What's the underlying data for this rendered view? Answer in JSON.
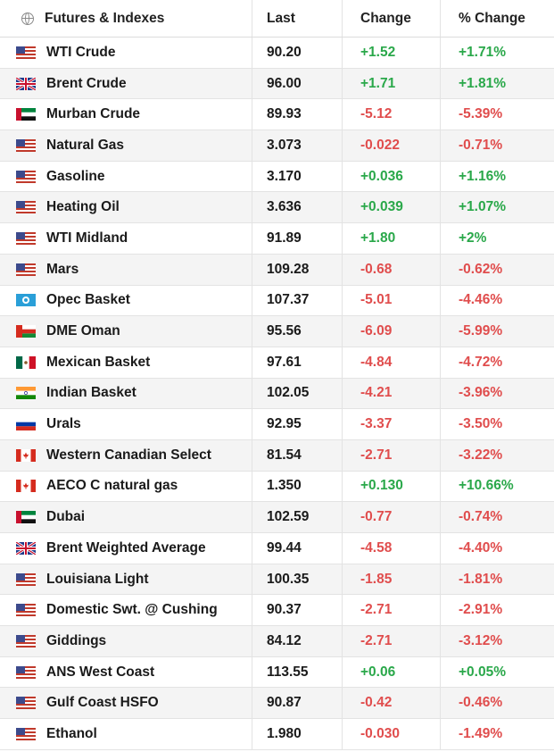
{
  "header": {
    "name": "Futures & Indexes",
    "last": "Last",
    "change": "Change",
    "pct_change": "% Change"
  },
  "rows": [
    {
      "flag": "us-flag-icon",
      "name": "WTI Crude",
      "last": "90.20",
      "change": "+1.52",
      "pct": "+1.71%",
      "dir": "pos"
    },
    {
      "flag": "uk-flag-icon",
      "name": "Brent Crude",
      "last": "96.00",
      "change": "+1.71",
      "pct": "+1.81%",
      "dir": "pos"
    },
    {
      "flag": "uae-flag-icon",
      "name": "Murban Crude",
      "last": "89.93",
      "change": "-5.12",
      "pct": "-5.39%",
      "dir": "neg"
    },
    {
      "flag": "us-flag-icon",
      "name": "Natural Gas",
      "last": "3.073",
      "change": "-0.022",
      "pct": "-0.71%",
      "dir": "neg"
    },
    {
      "flag": "us-flag-icon",
      "name": "Gasoline",
      "last": "3.170",
      "change": "+0.036",
      "pct": "+1.16%",
      "dir": "pos"
    },
    {
      "flag": "us-flag-icon",
      "name": "Heating Oil",
      "last": "3.636",
      "change": "+0.039",
      "pct": "+1.07%",
      "dir": "pos"
    },
    {
      "flag": "us-flag-icon",
      "name": "WTI Midland",
      "last": "91.89",
      "change": "+1.80",
      "pct": "+2%",
      "dir": "pos"
    },
    {
      "flag": "us-flag-icon",
      "name": "Mars",
      "last": "109.28",
      "change": "-0.68",
      "pct": "-0.62%",
      "dir": "neg"
    },
    {
      "flag": "opec-flag-icon",
      "name": "Opec Basket",
      "last": "107.37",
      "change": "-5.01",
      "pct": "-4.46%",
      "dir": "neg"
    },
    {
      "flag": "oman-flag-icon",
      "name": "DME Oman",
      "last": "95.56",
      "change": "-6.09",
      "pct": "-5.99%",
      "dir": "neg"
    },
    {
      "flag": "mexico-flag-icon",
      "name": "Mexican Basket",
      "last": "97.61",
      "change": "-4.84",
      "pct": "-4.72%",
      "dir": "neg"
    },
    {
      "flag": "india-flag-icon",
      "name": "Indian Basket",
      "last": "102.05",
      "change": "-4.21",
      "pct": "-3.96%",
      "dir": "neg"
    },
    {
      "flag": "russia-flag-icon",
      "name": "Urals",
      "last": "92.95",
      "change": "-3.37",
      "pct": "-3.50%",
      "dir": "neg"
    },
    {
      "flag": "canada-flag-icon",
      "name": "Western Canadian Select",
      "last": "81.54",
      "change": "-2.71",
      "pct": "-3.22%",
      "dir": "neg"
    },
    {
      "flag": "canada-flag-icon",
      "name": "AECO C natural gas",
      "last": "1.350",
      "change": "+0.130",
      "pct": "+10.66%",
      "dir": "pos"
    },
    {
      "flag": "uae-flag-icon",
      "name": "Dubai",
      "last": "102.59",
      "change": "-0.77",
      "pct": "-0.74%",
      "dir": "neg"
    },
    {
      "flag": "uk-flag-icon",
      "name": "Brent Weighted Average",
      "last": "99.44",
      "change": "-4.58",
      "pct": "-4.40%",
      "dir": "neg"
    },
    {
      "flag": "us-flag-icon",
      "name": "Louisiana Light",
      "last": "100.35",
      "change": "-1.85",
      "pct": "-1.81%",
      "dir": "neg"
    },
    {
      "flag": "us-flag-icon",
      "name": "Domestic Swt. @ Cushing",
      "last": "90.37",
      "change": "-2.71",
      "pct": "-2.91%",
      "dir": "neg"
    },
    {
      "flag": "us-flag-icon",
      "name": "Giddings",
      "last": "84.12",
      "change": "-2.71",
      "pct": "-3.12%",
      "dir": "neg"
    },
    {
      "flag": "us-flag-icon",
      "name": "ANS West Coast",
      "last": "113.55",
      "change": "+0.06",
      "pct": "+0.05%",
      "dir": "pos"
    },
    {
      "flag": "us-flag-icon",
      "name": "Gulf Coast HSFO",
      "last": "90.87",
      "change": "-0.42",
      "pct": "-0.46%",
      "dir": "neg"
    },
    {
      "flag": "us-flag-icon",
      "name": "Ethanol",
      "last": "1.980",
      "change": "-0.030",
      "pct": "-1.49%",
      "dir": "neg"
    }
  ],
  "colors": {
    "positive": "#2aa84a",
    "negative": "#e04d4d",
    "row_alt": "#f4f4f4"
  }
}
